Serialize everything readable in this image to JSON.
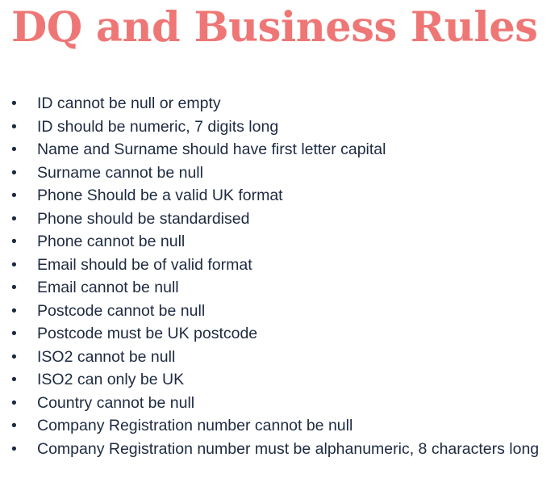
{
  "title": "DQ and Business Rules",
  "accent_color": "#ee7776",
  "text_color": "#1d2a40",
  "bullet_icon": "•",
  "rules": [
    "ID cannot be null or empty",
    "ID should be numeric, 7 digits long",
    "Name and Surname should have first letter capital",
    "Surname cannot be null",
    "Phone Should be a valid UK format",
    "Phone should be standardised",
    "Phone cannot be null",
    "Email should be of valid format",
    "Email cannot be null",
    "Postcode cannot be null",
    "Postcode must be UK postcode",
    "ISO2 cannot be null",
    "ISO2 can only be UK",
    "Country cannot be null",
    "Company Registration number cannot be null",
    "Company Registration number must be alphanumeric, 8 characters long"
  ]
}
